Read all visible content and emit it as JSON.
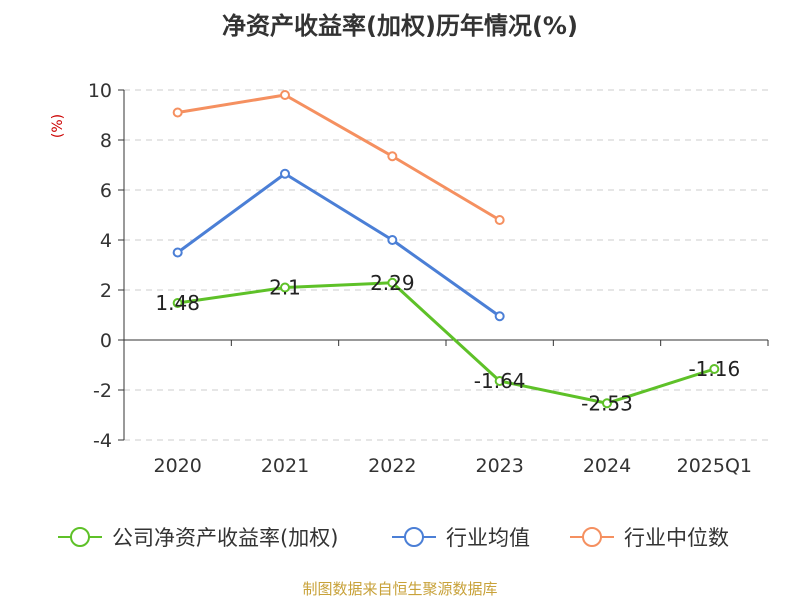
{
  "chart_data": {
    "type": "line",
    "title": "净资产收益率(加权)历年情况(%)",
    "ylabel": "(%)",
    "xlabel": "",
    "categories": [
      "2020",
      "2021",
      "2022",
      "2023",
      "2024",
      "2025Q1"
    ],
    "ylim": [
      -4,
      10
    ],
    "yticks": [
      -4,
      -2,
      0,
      2,
      4,
      6,
      8,
      10
    ],
    "ytick_labels": [
      "-4",
      "-2",
      "0",
      "2",
      "4",
      "6",
      "8",
      "10"
    ],
    "grid": "horizontal dashed",
    "legend_position": "bottom",
    "series": [
      {
        "name": "公司净资产收益率(加权)",
        "color": "#5ec128",
        "values": [
          1.48,
          2.1,
          2.29,
          -1.64,
          -2.53,
          -1.16
        ],
        "data_labels": [
          "1.48",
          "2.1",
          "2.29",
          "-1.64",
          "-2.53",
          "-1.16"
        ]
      },
      {
        "name": "行业均值",
        "color": "#4b7fd6",
        "values": [
          3.5,
          6.65,
          4.0,
          0.95,
          null,
          null
        ],
        "data_labels": []
      },
      {
        "name": "行业中位数",
        "color": "#f59060",
        "values": [
          9.1,
          9.8,
          7.35,
          4.8,
          null,
          null
        ],
        "data_labels": []
      }
    ]
  },
  "source": "制图数据来自恒生聚源数据库"
}
